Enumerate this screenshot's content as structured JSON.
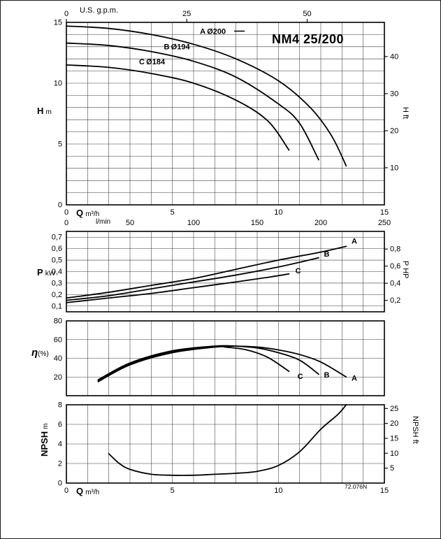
{
  "title": "NM4 25/200",
  "code": "72.076N",
  "accent_color": "#000000",
  "axis_labels": {
    "us_gpm": "U.S. g.p.m.",
    "q": "Q",
    "q_unit": "m³/h",
    "lmin": "l/min",
    "h": "H",
    "h_unit": "m",
    "h_ft": "H ft",
    "p": "P",
    "p_unit": "kW",
    "p_hp": "P HP",
    "eta": "η",
    "eta_unit": "(%)",
    "npsh": "NPSH",
    "npsh_unit": "m",
    "npsh_ft": "NPSH ft"
  },
  "chart_data": [
    {
      "id": "head",
      "type": "line",
      "title": "NM4 25/200",
      "xlabel": "Q m³/h / l/min",
      "x2label": "U.S. g.p.m.",
      "ylabel": "H m",
      "y2label": "H ft",
      "xlim": [
        0,
        15
      ],
      "ylim": [
        0,
        15
      ],
      "x_ticks": [
        0,
        5,
        10,
        15
      ],
      "x_ticks_lmin": [
        0,
        50,
        100,
        150,
        200,
        250
      ],
      "x_lmin_factor": 0.06,
      "x2_ticks": [
        0,
        25,
        50
      ],
      "x2_factor": 0.227125,
      "y_ticks": [
        0,
        5,
        10,
        15
      ],
      "y2_ticks": [
        10,
        20,
        30,
        40
      ],
      "y2_factor": 0.3048,
      "grid": "on",
      "series": [
        {
          "key": "A",
          "rest": "Ø200",
          "name": "A Ø200",
          "dash": true,
          "label_at": [
            6.3,
            14.05
          ],
          "x": [
            0,
            2,
            4,
            6,
            8,
            10,
            11.5,
            12.5,
            13.2
          ],
          "y": [
            14.7,
            14.5,
            14.0,
            13.2,
            12.0,
            10.2,
            8.0,
            5.7,
            3.2
          ]
        },
        {
          "key": "B",
          "rest": "Ø194",
          "name": "B Ø194",
          "label_at": [
            4.6,
            12.8
          ],
          "x": [
            0,
            2,
            4,
            6,
            8,
            10,
            11,
            11.9
          ],
          "y": [
            13.3,
            13.1,
            12.6,
            11.8,
            10.5,
            8.3,
            6.7,
            3.7
          ]
        },
        {
          "key": "C",
          "rest": "Ø184",
          "name": "C Ø184",
          "label_at": [
            3.43,
            11.55
          ],
          "x": [
            0,
            2,
            4,
            6,
            8,
            9.5,
            10.5
          ],
          "y": [
            11.5,
            11.3,
            10.8,
            10.0,
            8.6,
            6.9,
            4.5
          ]
        }
      ]
    },
    {
      "id": "power",
      "type": "line",
      "xlabel": "Q m³/h",
      "ylabel": "P kW",
      "y2label": "P HP",
      "xlim": [
        0,
        15
      ],
      "ylim": [
        0.05,
        0.75
      ],
      "y_ticks": [
        0.1,
        0.2,
        0.3,
        0.4,
        0.5,
        0.6,
        0.7
      ],
      "decimal_comma": true,
      "y2_ticks": [
        0.2,
        0.4,
        0.6,
        0.8
      ],
      "y2_comma": true,
      "y2_factor": 0.7457,
      "grid": "on",
      "series": [
        {
          "key": "A",
          "name": "A",
          "label_at": [
            13.45,
            0.645
          ],
          "x": [
            0,
            2,
            4,
            6,
            8,
            10,
            12,
            13.2
          ],
          "y": [
            0.17,
            0.22,
            0.28,
            0.34,
            0.42,
            0.5,
            0.57,
            0.62
          ]
        },
        {
          "key": "B",
          "name": "B",
          "label_at": [
            12.15,
            0.53
          ],
          "x": [
            0,
            2,
            4,
            6,
            8,
            10,
            11.9
          ],
          "y": [
            0.15,
            0.19,
            0.25,
            0.31,
            0.37,
            0.44,
            0.52
          ]
        },
        {
          "key": "C",
          "name": "C",
          "label_at": [
            10.8,
            0.385
          ],
          "x": [
            0,
            2,
            4,
            6,
            8,
            9.5,
            10.5
          ],
          "y": [
            0.13,
            0.17,
            0.21,
            0.26,
            0.31,
            0.35,
            0.38
          ]
        }
      ]
    },
    {
      "id": "eta",
      "type": "line",
      "xlabel": "Q m³/h",
      "ylabel": "η (%)",
      "xlim": [
        0,
        15
      ],
      "ylim": [
        0,
        80
      ],
      "y_ticks": [
        20,
        40,
        60,
        80
      ],
      "grid": "on",
      "series": [
        {
          "key": "A",
          "name": "A",
          "label_at": [
            13.45,
            16
          ],
          "x": [
            1.5,
            3,
            5,
            7,
            8,
            9,
            10,
            11,
            12,
            13.2
          ],
          "y": [
            15,
            33,
            46,
            52,
            53,
            52,
            49,
            44,
            36,
            20
          ]
        },
        {
          "key": "B",
          "name": "B",
          "label_at": [
            12.15,
            19.5
          ],
          "x": [
            1.5,
            3,
            5,
            7,
            8,
            9,
            10,
            11,
            11.9
          ],
          "y": [
            16,
            34,
            47,
            53,
            53,
            51,
            46,
            38,
            23
          ]
        },
        {
          "key": "C",
          "name": "C",
          "label_at": [
            10.9,
            18
          ],
          "x": [
            1.5,
            3,
            5,
            7,
            7.5,
            8.5,
            9.5,
            10.5
          ],
          "y": [
            17,
            35,
            48,
            53,
            52,
            49,
            41,
            26
          ]
        }
      ]
    },
    {
      "id": "npsh",
      "type": "line",
      "xlabel": "Q m³/h",
      "ylabel": "NPSH m",
      "y2label": "NPSH ft",
      "xlim": [
        0,
        15
      ],
      "ylim": [
        0,
        8
      ],
      "x_ticks": [
        0,
        5,
        10,
        15
      ],
      "y_ticks": [
        0,
        2,
        4,
        6,
        8
      ],
      "y2_ticks": [
        5,
        10,
        15,
        20,
        25
      ],
      "y2_factor": 0.3048,
      "grid": "on",
      "series": [
        {
          "key": "NPSH",
          "name": "NPSH",
          "x": [
            2,
            2.5,
            3,
            4,
            5,
            6,
            7,
            8,
            9,
            10,
            11,
            12,
            12.8,
            13.2
          ],
          "y": [
            3.0,
            2.0,
            1.4,
            0.9,
            0.8,
            0.8,
            0.9,
            1.0,
            1.2,
            1.8,
            3.2,
            5.5,
            7.0,
            8.0
          ]
        }
      ]
    }
  ]
}
